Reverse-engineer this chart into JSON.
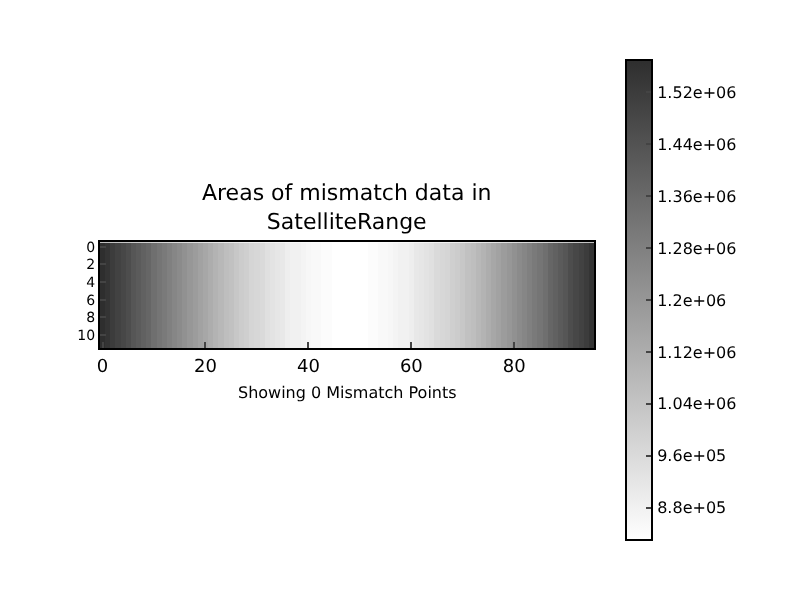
{
  "chart_data": {
    "type": "heatmap",
    "title": "Areas of mismatch data in\nSatelliteRange",
    "annotations": [
      "Showing 0 Mismatch Points"
    ],
    "xlim": [
      -0.5,
      95.5
    ],
    "xticks": [
      0,
      20,
      40,
      60,
      80
    ],
    "ylim": [
      11.5,
      -0.5
    ],
    "yticks": [
      0,
      2,
      4,
      6,
      8,
      10
    ],
    "clim": [
      830000,
      1570000
    ],
    "cticks": [
      {
        "value": 880000,
        "label": "8.8e+05"
      },
      {
        "value": 960000,
        "label": "9.6e+05"
      },
      {
        "value": 1040000,
        "label": "1.04e+06"
      },
      {
        "value": 1120000,
        "label": "1.12e+06"
      },
      {
        "value": 1200000,
        "label": "1.2e+06"
      },
      {
        "value": 1280000,
        "label": "1.28e+06"
      },
      {
        "value": 1360000,
        "label": "1.36e+06"
      },
      {
        "value": 1440000,
        "label": "1.44e+06"
      },
      {
        "value": 1520000,
        "label": "1.52e+06"
      }
    ],
    "cells": [
      [
        1570000.0,
        1550000.0,
        1520000.0,
        1500000.0,
        1480000.0,
        1460000.0,
        1430000.0,
        1410000.0,
        1390000.0,
        1370000.0,
        1340000.0,
        1320000.0,
        1300000.0,
        1280000.0,
        1260000.0,
        1240000.0,
        1220000.0,
        1200000.0,
        1180000.0,
        1160000.0,
        1140000.0,
        1120000.0,
        1100000.0,
        1080000.0,
        1060000.0,
        1050000.0,
        1030000.0,
        1010000.0,
        1000000.0,
        980000.0,
        970000.0,
        960000.0,
        940000.0,
        930000.0,
        920000.0,
        910000.0,
        890000.0,
        880000.0,
        880000.0,
        870000.0,
        860000.0,
        850000.0,
        850000.0,
        840000.0,
        840000.0,
        830000.0,
        830000.0,
        830000.0,
        830000.0,
        830000.0,
        830000.0,
        830000.0,
        840000.0,
        840000.0,
        850000.0,
        850000.0,
        860000.0,
        870000.0,
        880000.0,
        880000.0,
        890000.0,
        910000.0,
        920000.0,
        930000.0,
        940000.0,
        960000.0,
        970000.0,
        980000.0,
        1000000.0,
        1010000.0,
        1030000.0,
        1050000.0,
        1060000.0,
        1080000.0,
        1100000.0,
        1120000.0,
        1140000.0,
        1160000.0,
        1180000.0,
        1200000.0,
        1220000.0,
        1240000.0,
        1260000.0,
        1280000.0,
        1300000.0,
        1320000.0,
        1340000.0,
        1370000.0,
        1390000.0,
        1410000.0,
        1430000.0,
        1460000.0,
        1480000.0,
        1500000.0,
        1520000.0,
        1550000.0
      ],
      [
        1570000.0,
        1550000.0,
        1520000.0,
        1500000.0,
        1480000.0,
        1460000.0,
        1430000.0,
        1410000.0,
        1390000.0,
        1370000.0,
        1340000.0,
        1320000.0,
        1300000.0,
        1280000.0,
        1260000.0,
        1240000.0,
        1220000.0,
        1200000.0,
        1180000.0,
        1160000.0,
        1140000.0,
        1120000.0,
        1100000.0,
        1080000.0,
        1060000.0,
        1050000.0,
        1030000.0,
        1010000.0,
        1000000.0,
        980000.0,
        970000.0,
        960000.0,
        940000.0,
        930000.0,
        920000.0,
        910000.0,
        890000.0,
        880000.0,
        880000.0,
        870000.0,
        860000.0,
        850000.0,
        850000.0,
        840000.0,
        840000.0,
        830000.0,
        830000.0,
        830000.0,
        830000.0,
        830000.0,
        830000.0,
        830000.0,
        840000.0,
        840000.0,
        850000.0,
        850000.0,
        860000.0,
        870000.0,
        880000.0,
        880000.0,
        890000.0,
        910000.0,
        920000.0,
        930000.0,
        940000.0,
        960000.0,
        970000.0,
        980000.0,
        1000000.0,
        1010000.0,
        1030000.0,
        1050000.0,
        1060000.0,
        1080000.0,
        1100000.0,
        1120000.0,
        1140000.0,
        1160000.0,
        1180000.0,
        1200000.0,
        1220000.0,
        1240000.0,
        1260000.0,
        1280000.0,
        1300000.0,
        1320000.0,
        1340000.0,
        1370000.0,
        1390000.0,
        1410000.0,
        1430000.0,
        1460000.0,
        1480000.0,
        1500000.0,
        1520000.0,
        1550000.0
      ],
      [
        1570000.0,
        1550000.0,
        1520000.0,
        1500000.0,
        1480000.0,
        1460000.0,
        1430000.0,
        1410000.0,
        1390000.0,
        1370000.0,
        1340000.0,
        1320000.0,
        1300000.0,
        1280000.0,
        1260000.0,
        1240000.0,
        1220000.0,
        1200000.0,
        1180000.0,
        1160000.0,
        1140000.0,
        1120000.0,
        1100000.0,
        1080000.0,
        1060000.0,
        1050000.0,
        1030000.0,
        1010000.0,
        1000000.0,
        980000.0,
        970000.0,
        960000.0,
        940000.0,
        930000.0,
        920000.0,
        910000.0,
        890000.0,
        880000.0,
        880000.0,
        870000.0,
        860000.0,
        850000.0,
        850000.0,
        840000.0,
        840000.0,
        830000.0,
        830000.0,
        830000.0,
        830000.0,
        830000.0,
        830000.0,
        830000.0,
        840000.0,
        840000.0,
        850000.0,
        850000.0,
        860000.0,
        870000.0,
        880000.0,
        880000.0,
        890000.0,
        910000.0,
        920000.0,
        930000.0,
        940000.0,
        960000.0,
        970000.0,
        980000.0,
        1000000.0,
        1010000.0,
        1030000.0,
        1050000.0,
        1060000.0,
        1080000.0,
        1100000.0,
        1120000.0,
        1140000.0,
        1160000.0,
        1180000.0,
        1200000.0,
        1220000.0,
        1240000.0,
        1260000.0,
        1280000.0,
        1300000.0,
        1320000.0,
        1340000.0,
        1370000.0,
        1390000.0,
        1410000.0,
        1430000.0,
        1460000.0,
        1480000.0,
        1500000.0,
        1520000.0,
        1550000.0
      ],
      [
        1570000.0,
        1550000.0,
        1520000.0,
        1500000.0,
        1480000.0,
        1460000.0,
        1430000.0,
        1410000.0,
        1390000.0,
        1370000.0,
        1340000.0,
        1320000.0,
        1300000.0,
        1280000.0,
        1260000.0,
        1240000.0,
        1220000.0,
        1200000.0,
        1180000.0,
        1160000.0,
        1140000.0,
        1120000.0,
        1100000.0,
        1080000.0,
        1060000.0,
        1050000.0,
        1030000.0,
        1010000.0,
        1000000.0,
        980000.0,
        970000.0,
        960000.0,
        940000.0,
        930000.0,
        920000.0,
        910000.0,
        890000.0,
        880000.0,
        880000.0,
        870000.0,
        860000.0,
        850000.0,
        850000.0,
        840000.0,
        840000.0,
        830000.0,
        830000.0,
        830000.0,
        830000.0,
        830000.0,
        830000.0,
        830000.0,
        840000.0,
        840000.0,
        850000.0,
        850000.0,
        860000.0,
        870000.0,
        880000.0,
        880000.0,
        890000.0,
        910000.0,
        920000.0,
        930000.0,
        940000.0,
        960000.0,
        970000.0,
        980000.0,
        1000000.0,
        1010000.0,
        1030000.0,
        1050000.0,
        1060000.0,
        1080000.0,
        1100000.0,
        1120000.0,
        1140000.0,
        1160000.0,
        1180000.0,
        1200000.0,
        1220000.0,
        1240000.0,
        1260000.0,
        1280000.0,
        1300000.0,
        1320000.0,
        1340000.0,
        1370000.0,
        1390000.0,
        1410000.0,
        1430000.0,
        1460000.0,
        1480000.0,
        1500000.0,
        1520000.0,
        1550000.0
      ],
      [
        1570000.0,
        1550000.0,
        1520000.0,
        1500000.0,
        1480000.0,
        1460000.0,
        1430000.0,
        1410000.0,
        1390000.0,
        1370000.0,
        1340000.0,
        1320000.0,
        1300000.0,
        1280000.0,
        1260000.0,
        1240000.0,
        1220000.0,
        1200000.0,
        1180000.0,
        1160000.0,
        1140000.0,
        1120000.0,
        1100000.0,
        1080000.0,
        1060000.0,
        1050000.0,
        1030000.0,
        1010000.0,
        1000000.0,
        980000.0,
        970000.0,
        960000.0,
        940000.0,
        930000.0,
        920000.0,
        910000.0,
        890000.0,
        880000.0,
        880000.0,
        870000.0,
        860000.0,
        850000.0,
        850000.0,
        840000.0,
        840000.0,
        830000.0,
        830000.0,
        830000.0,
        830000.0,
        830000.0,
        830000.0,
        830000.0,
        840000.0,
        840000.0,
        850000.0,
        850000.0,
        860000.0,
        870000.0,
        880000.0,
        880000.0,
        890000.0,
        910000.0,
        920000.0,
        930000.0,
        940000.0,
        960000.0,
        970000.0,
        980000.0,
        1000000.0,
        1010000.0,
        1030000.0,
        1050000.0,
        1060000.0,
        1080000.0,
        1100000.0,
        1120000.0,
        1140000.0,
        1160000.0,
        1180000.0,
        1200000.0,
        1220000.0,
        1240000.0,
        1260000.0,
        1280000.0,
        1300000.0,
        1320000.0,
        1340000.0,
        1370000.0,
        1390000.0,
        1410000.0,
        1430000.0,
        1460000.0,
        1480000.0,
        1500000.0,
        1520000.0,
        1550000.0
      ],
      [
        1570000.0,
        1550000.0,
        1520000.0,
        1500000.0,
        1480000.0,
        1460000.0,
        1430000.0,
        1410000.0,
        1390000.0,
        1370000.0,
        1340000.0,
        1320000.0,
        1300000.0,
        1280000.0,
        1260000.0,
        1240000.0,
        1220000.0,
        1200000.0,
        1180000.0,
        1160000.0,
        1140000.0,
        1120000.0,
        1100000.0,
        1080000.0,
        1060000.0,
        1050000.0,
        1030000.0,
        1010000.0,
        1000000.0,
        980000.0,
        970000.0,
        960000.0,
        940000.0,
        930000.0,
        920000.0,
        910000.0,
        890000.0,
        880000.0,
        880000.0,
        870000.0,
        860000.0,
        850000.0,
        850000.0,
        840000.0,
        840000.0,
        830000.0,
        830000.0,
        830000.0,
        830000.0,
        830000.0,
        830000.0,
        830000.0,
        840000.0,
        840000.0,
        850000.0,
        850000.0,
        860000.0,
        870000.0,
        880000.0,
        880000.0,
        890000.0,
        910000.0,
        920000.0,
        930000.0,
        940000.0,
        960000.0,
        970000.0,
        980000.0,
        1000000.0,
        1010000.0,
        1030000.0,
        1050000.0,
        1060000.0,
        1080000.0,
        1100000.0,
        1120000.0,
        1140000.0,
        1160000.0,
        1180000.0,
        1200000.0,
        1220000.0,
        1240000.0,
        1260000.0,
        1280000.0,
        1300000.0,
        1320000.0,
        1340000.0,
        1370000.0,
        1390000.0,
        1410000.0,
        1430000.0,
        1460000.0,
        1480000.0,
        1500000.0,
        1520000.0,
        1550000.0
      ],
      [
        1570000.0,
        1550000.0,
        1520000.0,
        1500000.0,
        1480000.0,
        1460000.0,
        1430000.0,
        1410000.0,
        1390000.0,
        1370000.0,
        1340000.0,
        1320000.0,
        1300000.0,
        1280000.0,
        1260000.0,
        1240000.0,
        1220000.0,
        1200000.0,
        1180000.0,
        1160000.0,
        1140000.0,
        1120000.0,
        1100000.0,
        1080000.0,
        1060000.0,
        1050000.0,
        1030000.0,
        1010000.0,
        1000000.0,
        980000.0,
        970000.0,
        960000.0,
        940000.0,
        930000.0,
        920000.0,
        910000.0,
        890000.0,
        880000.0,
        880000.0,
        870000.0,
        860000.0,
        850000.0,
        850000.0,
        840000.0,
        840000.0,
        830000.0,
        830000.0,
        830000.0,
        830000.0,
        830000.0,
        830000.0,
        830000.0,
        840000.0,
        840000.0,
        850000.0,
        850000.0,
        860000.0,
        870000.0,
        880000.0,
        880000.0,
        890000.0,
        910000.0,
        920000.0,
        930000.0,
        940000.0,
        960000.0,
        970000.0,
        980000.0,
        1000000.0,
        1010000.0,
        1030000.0,
        1050000.0,
        1060000.0,
        1080000.0,
        1100000.0,
        1120000.0,
        1140000.0,
        1160000.0,
        1180000.0,
        1200000.0,
        1220000.0,
        1240000.0,
        1260000.0,
        1280000.0,
        1300000.0,
        1320000.0,
        1340000.0,
        1370000.0,
        1390000.0,
        1410000.0,
        1430000.0,
        1460000.0,
        1480000.0,
        1500000.0,
        1520000.0,
        1550000.0
      ],
      [
        1570000.0,
        1550000.0,
        1520000.0,
        1500000.0,
        1480000.0,
        1460000.0,
        1430000.0,
        1410000.0,
        1390000.0,
        1370000.0,
        1340000.0,
        1320000.0,
        1300000.0,
        1280000.0,
        1260000.0,
        1240000.0,
        1220000.0,
        1200000.0,
        1180000.0,
        1160000.0,
        1140000.0,
        1120000.0,
        1100000.0,
        1080000.0,
        1060000.0,
        1050000.0,
        1030000.0,
        1010000.0,
        1000000.0,
        980000.0,
        970000.0,
        960000.0,
        940000.0,
        930000.0,
        920000.0,
        910000.0,
        890000.0,
        880000.0,
        880000.0,
        870000.0,
        860000.0,
        850000.0,
        850000.0,
        840000.0,
        840000.0,
        830000.0,
        830000.0,
        830000.0,
        830000.0,
        830000.0,
        830000.0,
        830000.0,
        840000.0,
        840000.0,
        850000.0,
        850000.0,
        860000.0,
        870000.0,
        880000.0,
        880000.0,
        890000.0,
        910000.0,
        920000.0,
        930000.0,
        940000.0,
        960000.0,
        970000.0,
        980000.0,
        1000000.0,
        1010000.0,
        1030000.0,
        1050000.0,
        1060000.0,
        1080000.0,
        1100000.0,
        1120000.0,
        1140000.0,
        1160000.0,
        1180000.0,
        1200000.0,
        1220000.0,
        1240000.0,
        1260000.0,
        1280000.0,
        1300000.0,
        1320000.0,
        1340000.0,
        1370000.0,
        1390000.0,
        1410000.0,
        1430000.0,
        1460000.0,
        1480000.0,
        1500000.0,
        1520000.0,
        1550000.0
      ],
      [
        1570000.0,
        1550000.0,
        1520000.0,
        1500000.0,
        1480000.0,
        1460000.0,
        1430000.0,
        1410000.0,
        1390000.0,
        1370000.0,
        1340000.0,
        1320000.0,
        1300000.0,
        1280000.0,
        1260000.0,
        1240000.0,
        1220000.0,
        1200000.0,
        1180000.0,
        1160000.0,
        1140000.0,
        1120000.0,
        1100000.0,
        1080000.0,
        1060000.0,
        1050000.0,
        1030000.0,
        1010000.0,
        1000000.0,
        980000.0,
        970000.0,
        960000.0,
        940000.0,
        930000.0,
        920000.0,
        910000.0,
        890000.0,
        880000.0,
        880000.0,
        870000.0,
        860000.0,
        850000.0,
        850000.0,
        840000.0,
        840000.0,
        830000.0,
        830000.0,
        830000.0,
        830000.0,
        830000.0,
        830000.0,
        830000.0,
        840000.0,
        840000.0,
        850000.0,
        850000.0,
        860000.0,
        870000.0,
        880000.0,
        880000.0,
        890000.0,
        910000.0,
        920000.0,
        930000.0,
        940000.0,
        960000.0,
        970000.0,
        980000.0,
        1000000.0,
        1010000.0,
        1030000.0,
        1050000.0,
        1060000.0,
        1080000.0,
        1100000.0,
        1120000.0,
        1140000.0,
        1160000.0,
        1180000.0,
        1200000.0,
        1220000.0,
        1240000.0,
        1260000.0,
        1280000.0,
        1300000.0,
        1320000.0,
        1340000.0,
        1370000.0,
        1390000.0,
        1410000.0,
        1430000.0,
        1460000.0,
        1480000.0,
        1500000.0,
        1520000.0,
        1550000.0
      ],
      [
        1570000.0,
        1550000.0,
        1520000.0,
        1500000.0,
        1480000.0,
        1460000.0,
        1430000.0,
        1410000.0,
        1390000.0,
        1370000.0,
        1340000.0,
        1320000.0,
        1300000.0,
        1280000.0,
        1260000.0,
        1240000.0,
        1220000.0,
        1200000.0,
        1180000.0,
        1160000.0,
        1140000.0,
        1120000.0,
        1100000.0,
        1080000.0,
        1060000.0,
        1050000.0,
        1030000.0,
        1010000.0,
        1000000.0,
        980000.0,
        970000.0,
        960000.0,
        940000.0,
        930000.0,
        920000.0,
        910000.0,
        890000.0,
        880000.0,
        880000.0,
        870000.0,
        860000.0,
        850000.0,
        850000.0,
        840000.0,
        840000.0,
        830000.0,
        830000.0,
        830000.0,
        830000.0,
        830000.0,
        830000.0,
        830000.0,
        840000.0,
        840000.0,
        850000.0,
        850000.0,
        860000.0,
        870000.0,
        880000.0,
        880000.0,
        890000.0,
        910000.0,
        920000.0,
        930000.0,
        940000.0,
        960000.0,
        970000.0,
        980000.0,
        1000000.0,
        1010000.0,
        1030000.0,
        1050000.0,
        1060000.0,
        1080000.0,
        1100000.0,
        1120000.0,
        1140000.0,
        1160000.0,
        1180000.0,
        1200000.0,
        1220000.0,
        1240000.0,
        1260000.0,
        1280000.0,
        1300000.0,
        1320000.0,
        1340000.0,
        1370000.0,
        1390000.0,
        1410000.0,
        1430000.0,
        1460000.0,
        1480000.0,
        1500000.0,
        1520000.0,
        1550000.0
      ],
      [
        1570000.0,
        1550000.0,
        1520000.0,
        1500000.0,
        1480000.0,
        1460000.0,
        1430000.0,
        1410000.0,
        1390000.0,
        1370000.0,
        1340000.0,
        1320000.0,
        1300000.0,
        1280000.0,
        1260000.0,
        1240000.0,
        1220000.0,
        1200000.0,
        1180000.0,
        1160000.0,
        1140000.0,
        1120000.0,
        1100000.0,
        1080000.0,
        1060000.0,
        1050000.0,
        1030000.0,
        1010000.0,
        1000000.0,
        980000.0,
        970000.0,
        960000.0,
        940000.0,
        930000.0,
        920000.0,
        910000.0,
        890000.0,
        880000.0,
        880000.0,
        870000.0,
        860000.0,
        850000.0,
        850000.0,
        840000.0,
        840000.0,
        830000.0,
        830000.0,
        830000.0,
        830000.0,
        830000.0,
        830000.0,
        830000.0,
        840000.0,
        840000.0,
        850000.0,
        850000.0,
        860000.0,
        870000.0,
        880000.0,
        880000.0,
        890000.0,
        910000.0,
        920000.0,
        930000.0,
        940000.0,
        960000.0,
        970000.0,
        980000.0,
        1000000.0,
        1010000.0,
        1030000.0,
        1050000.0,
        1060000.0,
        1080000.0,
        1100000.0,
        1120000.0,
        1140000.0,
        1160000.0,
        1180000.0,
        1200000.0,
        1220000.0,
        1240000.0,
        1260000.0,
        1280000.0,
        1300000.0,
        1320000.0,
        1340000.0,
        1370000.0,
        1390000.0,
        1410000.0,
        1430000.0,
        1460000.0,
        1480000.0,
        1500000.0,
        1520000.0,
        1550000.0
      ],
      [
        1570000.0,
        1550000.0,
        1520000.0,
        1500000.0,
        1480000.0,
        1460000.0,
        1430000.0,
        1410000.0,
        1390000.0,
        1370000.0,
        1340000.0,
        1320000.0,
        1300000.0,
        1280000.0,
        1260000.0,
        1240000.0,
        1220000.0,
        1200000.0,
        1180000.0,
        1160000.0,
        1140000.0,
        1120000.0,
        1100000.0,
        1080000.0,
        1060000.0,
        1050000.0,
        1030000.0,
        1010000.0,
        1000000.0,
        980000.0,
        970000.0,
        960000.0,
        940000.0,
        930000.0,
        920000.0,
        910000.0,
        890000.0,
        880000.0,
        880000.0,
        870000.0,
        860000.0,
        850000.0,
        850000.0,
        840000.0,
        840000.0,
        830000.0,
        830000.0,
        830000.0,
        830000.0,
        830000.0,
        830000.0,
        830000.0,
        840000.0,
        840000.0,
        850000.0,
        850000.0,
        860000.0,
        870000.0,
        880000.0,
        880000.0,
        890000.0,
        910000.0,
        920000.0,
        930000.0,
        940000.0,
        960000.0,
        970000.0,
        980000.0,
        1000000.0,
        1010000.0,
        1030000.0,
        1050000.0,
        1060000.0,
        1080000.0,
        1100000.0,
        1120000.0,
        1140000.0,
        1160000.0,
        1180000.0,
        1200000.0,
        1220000.0,
        1240000.0,
        1260000.0,
        1280000.0,
        1300000.0,
        1320000.0,
        1340000.0,
        1370000.0,
        1390000.0,
        1410000.0,
        1430000.0,
        1460000.0,
        1480000.0,
        1500000.0,
        1520000.0,
        1550000.0
      ]
    ]
  }
}
